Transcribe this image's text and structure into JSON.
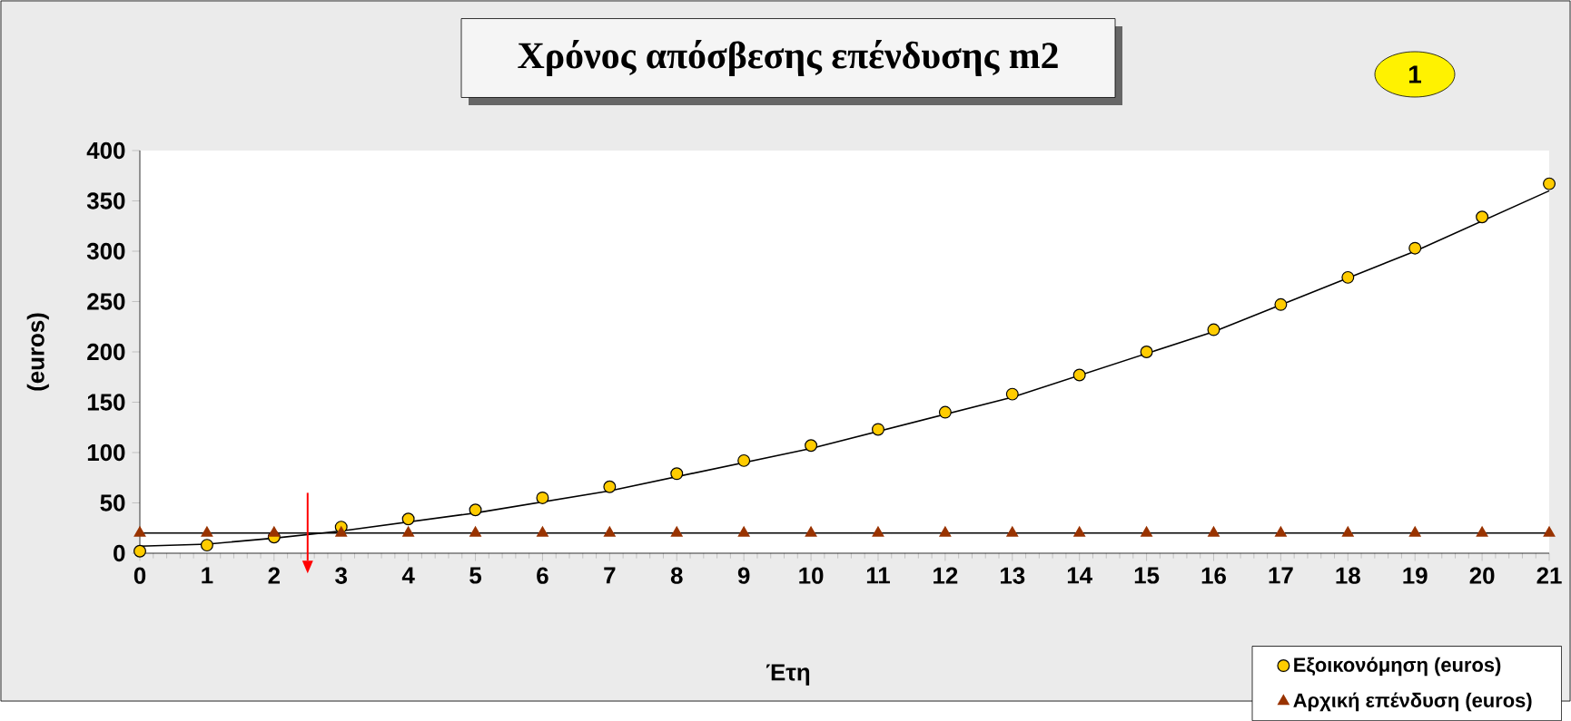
{
  "chart_data": {
    "type": "scatter",
    "title": "Χρόνος απόσβεσης επένδυσης  m2",
    "xlabel": "Έτη",
    "ylabel": "(euros)",
    "x": [
      0,
      1,
      2,
      3,
      4,
      5,
      6,
      7,
      8,
      9,
      10,
      11,
      12,
      13,
      14,
      15,
      16,
      17,
      18,
      19,
      20,
      21
    ],
    "xlim": [
      0,
      21
    ],
    "xticks": [
      0,
      1,
      2,
      3,
      4,
      5,
      6,
      7,
      8,
      9,
      10,
      11,
      12,
      13,
      14,
      15,
      16,
      17,
      18,
      19,
      20,
      21
    ],
    "ylim": [
      0,
      400
    ],
    "yticks": [
      0,
      50,
      100,
      150,
      200,
      250,
      300,
      350,
      400
    ],
    "legend": "bottom right",
    "grid": false,
    "annotations": [
      "1"
    ],
    "ref_lines": [
      {
        "axis": "x",
        "value": 2.5,
        "color": "#ff0000"
      }
    ],
    "series": [
      {
        "name": "Εξοικονόμηση (euros)",
        "marker": "circle",
        "color": "#ffcc00",
        "values": [
          2,
          8,
          16,
          26,
          34,
          43,
          55,
          66,
          79,
          92,
          107,
          123,
          140,
          158,
          177,
          200,
          222,
          247,
          274,
          303,
          334,
          367
        ]
      },
      {
        "name": "Αρχική επένδυση (euros)",
        "marker": "triangle",
        "color": "#993300",
        "values": [
          20,
          20,
          20,
          20,
          20,
          20,
          20,
          20,
          20,
          20,
          20,
          20,
          20,
          20,
          20,
          20,
          20,
          20,
          20,
          20,
          20,
          20
        ]
      },
      {
        "type": "line",
        "color": "#000000",
        "line_style": "solid",
        "x": [
          0,
          1,
          2,
          3,
          5,
          7,
          10,
          13,
          16,
          19,
          21
        ],
        "values": [
          7,
          9,
          15,
          22,
          40,
          62,
          104,
          155,
          220,
          300,
          360
        ]
      },
      {
        "type": "line",
        "color": "#000000",
        "line_style": "solid",
        "x": [
          0,
          21
        ],
        "values": [
          20,
          20
        ]
      }
    ]
  }
}
